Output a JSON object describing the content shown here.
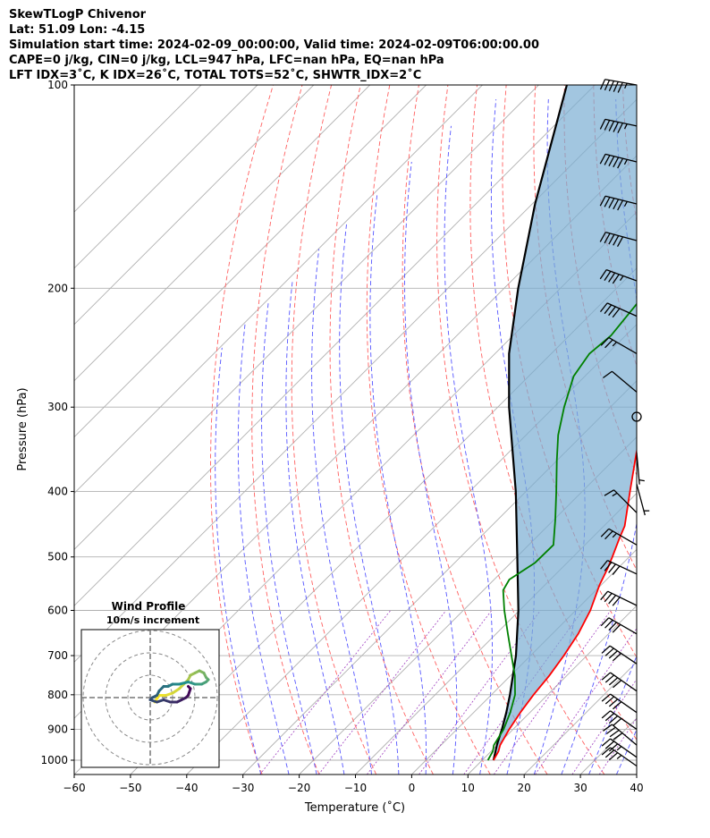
{
  "header": {
    "title": "SkewTLogP Chivenor",
    "location": "Lat: 51.09   Lon: -4.15",
    "times": "Simulation start time: 2024-02-09_00:00:00, Valid time: 2024-02-09T06:00:00.00",
    "indices1": "CAPE=0 j/kg, CIN=0 j/kg, LCL=947 hPa, LFC=nan hPa, EQ=nan hPa",
    "indices2": "LFT IDX=3˚C, K IDX=26˚C, TOTAL TOTS=52˚C, SHWTR_IDX=2˚C"
  },
  "chart_data": [
    {
      "type": "line",
      "title": "",
      "xlabel": "Temperature (˚C)",
      "ylabel": "Pressure (hPa)",
      "xlim": [
        -60,
        40
      ],
      "ylim": [
        1050,
        100
      ],
      "yscale": "log",
      "skew": "45-degree skewed temperature axis",
      "grid": true,
      "x_ticks": [
        "−60",
        "−50",
        "−40",
        "−30",
        "−20",
        "−10",
        "0",
        "10",
        "20",
        "30",
        "40"
      ],
      "y_ticks": [
        "100",
        "200",
        "300",
        "400",
        "500",
        "600",
        "700",
        "800",
        "900",
        "1000"
      ],
      "y_tick_values": [
        100,
        200,
        300,
        400,
        500,
        600,
        700,
        800,
        900,
        1000
      ],
      "series": [
        {
          "role": "temperature",
          "color": "#ff0000",
          "points": [
            [
              1000,
              12
            ],
            [
              970,
              11.3
            ],
            [
              950,
              10.5
            ],
            [
              900,
              9.3
            ],
            [
              850,
              8.3
            ],
            [
              800,
              7.5
            ],
            [
              750,
              6.9
            ],
            [
              700,
              5.9
            ],
            [
              650,
              4.6
            ],
            [
              600,
              2.6
            ],
            [
              550,
              -0.3
            ],
            [
              520,
              -1.8
            ],
            [
              500,
              -3.0
            ],
            [
              470,
              -5.0
            ],
            [
              450,
              -6.3
            ],
            [
              400,
              -11.5
            ],
            [
              350,
              -17.3
            ],
            [
              310,
              -22.3
            ],
            [
              290,
              -25.0
            ],
            [
              270,
              -27.3
            ],
            [
              250,
              -27.0
            ],
            [
              235,
              -28.4
            ],
            [
              220,
              -30.9
            ],
            [
              200,
              -35.0
            ],
            [
              180,
              -39.6
            ],
            [
              160,
              -44.3
            ],
            [
              140,
              -49.0
            ],
            [
              120,
              -53.8
            ],
            [
              110,
              -57.3
            ],
            [
              100,
              -60.0
            ]
          ]
        },
        {
          "role": "dewpoint",
          "color": "#008000",
          "points": [
            [
              1000,
              11
            ],
            [
              970,
              10.3
            ],
            [
              950,
              9.4
            ],
            [
              900,
              8.3
            ],
            [
              850,
              6.5
            ],
            [
              800,
              4.2
            ],
            [
              750,
              0.8
            ],
            [
              700,
              -3.4
            ],
            [
              650,
              -7.9
            ],
            [
              600,
              -12.7
            ],
            [
              560,
              -16.5
            ],
            [
              540,
              -17.3
            ],
            [
              510,
              -15.7
            ],
            [
              480,
              -15.6
            ],
            [
              440,
              -19.8
            ],
            [
              400,
              -24.6
            ],
            [
              360,
              -30.0
            ],
            [
              330,
              -34.3
            ],
            [
              300,
              -38.2
            ],
            [
              270,
              -42.0
            ],
            [
              250,
              -43.2
            ],
            [
              235,
              -42.6
            ],
            [
              210,
              -43.7
            ],
            [
              200,
              -45.2
            ],
            [
              180,
              -51.5
            ],
            [
              160,
              -53.2
            ],
            [
              140,
              -56.3
            ],
            [
              120,
              -60.7
            ],
            [
              100,
              -66.7
            ]
          ]
        },
        {
          "role": "parcel",
          "color": "#000000",
          "points": [
            [
              1000,
              12
            ],
            [
              947,
              9.8
            ],
            [
              900,
              8.0
            ],
            [
              850,
              5.8
            ],
            [
              800,
              3.3
            ],
            [
              700,
              -2.6
            ],
            [
              600,
              -10.2
            ],
            [
              500,
              -19.9
            ],
            [
              400,
              -31.8
            ],
            [
              300,
              -48.0
            ],
            [
              250,
              -57.5
            ],
            [
              200,
              -67.5
            ],
            [
              150,
              -79.5
            ],
            [
              100,
              -95.0
            ]
          ]
        }
      ],
      "wind_barbs": [
        {
          "p": 100,
          "dir": 280,
          "kt": 55
        },
        {
          "p": 115,
          "dir": 282,
          "kt": 55
        },
        {
          "p": 130,
          "dir": 284,
          "kt": 55
        },
        {
          "p": 150,
          "dir": 284,
          "kt": 55
        },
        {
          "p": 170,
          "dir": 285,
          "kt": 50
        },
        {
          "p": 195,
          "dir": 290,
          "kt": 45
        },
        {
          "p": 220,
          "dir": 294,
          "kt": 40
        },
        {
          "p": 250,
          "dir": 300,
          "kt": 25
        },
        {
          "p": 285,
          "dir": 310,
          "kt": 10
        },
        {
          "p": 310,
          "dir": 0,
          "kt": 0,
          "calm": true
        },
        {
          "p": 350,
          "dir": 175,
          "kt": 5
        },
        {
          "p": 390,
          "dir": 165,
          "kt": 5
        },
        {
          "p": 430,
          "dir": 315,
          "kt": 15
        },
        {
          "p": 480,
          "dir": 300,
          "kt": 25
        },
        {
          "p": 530,
          "dir": 295,
          "kt": 40
        },
        {
          "p": 590,
          "dir": 296,
          "kt": 40
        },
        {
          "p": 650,
          "dir": 300,
          "kt": 40
        },
        {
          "p": 720,
          "dir": 304,
          "kt": 40
        },
        {
          "p": 790,
          "dir": 305,
          "kt": 40
        },
        {
          "p": 850,
          "dir": 305,
          "kt": 40
        },
        {
          "p": 900,
          "dir": 305,
          "kt": 40
        },
        {
          "p": 950,
          "dir": 310,
          "kt": 40
        },
        {
          "p": 990,
          "dir": 305,
          "kt": 35
        },
        {
          "p": 1020,
          "dir": 305,
          "kt": 35
        }
      ]
    },
    {
      "type": "scatter",
      "title": "Wind Profile",
      "subtitle": "10m/s increment",
      "rings": [
        10,
        20,
        30
      ],
      "points": [
        [
          2,
          -2
        ],
        [
          4,
          1
        ],
        [
          7,
          1
        ],
        [
          10,
          2
        ],
        [
          13,
          4
        ],
        [
          15,
          6
        ],
        [
          17,
          8
        ],
        [
          18,
          10
        ],
        [
          20,
          11
        ],
        [
          22,
          12
        ],
        [
          24,
          11
        ],
        [
          25,
          9
        ],
        [
          26,
          8
        ],
        [
          25,
          7
        ],
        [
          23,
          6
        ],
        [
          20,
          6
        ],
        [
          17,
          7
        ],
        [
          13,
          6
        ],
        [
          10,
          6
        ],
        [
          8,
          5
        ],
        [
          6,
          5
        ],
        [
          4,
          3
        ],
        [
          3,
          1
        ],
        [
          1,
          0
        ],
        [
          0,
          -1
        ],
        [
          3,
          -2
        ],
        [
          6,
          -1
        ],
        [
          9,
          -2
        ],
        [
          12,
          -2
        ],
        [
          14,
          -1
        ],
        [
          16,
          0
        ],
        [
          17,
          1
        ],
        [
          18,
          4
        ],
        [
          17,
          5
        ]
      ],
      "color_start": "#fde725",
      "color_mid": "#21918c",
      "color_end": "#440154"
    }
  ]
}
